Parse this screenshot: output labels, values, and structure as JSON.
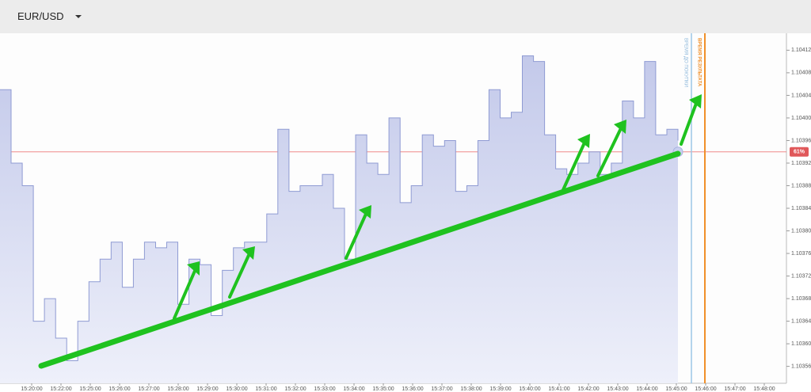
{
  "header": {
    "title": "EUR/USD"
  },
  "chart_data": {
    "type": "line",
    "series": [
      {
        "color": "#8f9bd3",
        "values": [
          1.10405,
          1.10392,
          1.10388,
          1.10364,
          1.10368,
          1.10361,
          1.10357,
          1.10364,
          1.10371,
          1.10375,
          1.10378,
          1.1037,
          1.10375,
          1.10378,
          1.10377,
          1.10378,
          1.10367,
          1.10375,
          1.10374,
          1.10365,
          1.10373,
          1.10377,
          1.10378,
          1.10378,
          1.10383,
          1.10398,
          1.10387,
          1.10388,
          1.10388,
          1.1039,
          1.10384,
          1.10375,
          1.10397,
          1.10392,
          1.1039,
          1.104,
          1.10385,
          1.10388,
          1.10397,
          1.10395,
          1.10396,
          1.10387,
          1.10388,
          1.10396,
          1.10405,
          1.104,
          1.10401,
          1.10411,
          1.1041,
          1.10397,
          1.10391,
          1.1039,
          1.10392,
          1.10394,
          1.1039,
          1.10392,
          1.10403,
          1.104,
          1.1041,
          1.10397,
          1.10398,
          1.10396
        ]
      }
    ],
    "ylim": [
      1.10353,
      1.10415
    ],
    "yticks": [
      {
        "value": 1.10356,
        "label": "1.10356"
      },
      {
        "value": 1.1036,
        "label": "1.10360"
      },
      1.10364,
      1.10368,
      1.10372,
      1.10376,
      {
        "value": 1.1038,
        "label": "1.10380"
      },
      1.10384,
      1.10388,
      1.10392,
      1.10396,
      {
        "value": 1.104,
        "label": "1.10400"
      },
      1.10404,
      1.10408,
      1.10412
    ],
    "xticks": [
      "15:20:00",
      "15:22:00",
      "15:25:00",
      "15:26:00",
      "15:27:00",
      "15:28:00",
      "15:29:00",
      "15:30:00",
      "15:31:00",
      "15:32:00",
      "15:33:00",
      "15:34:00",
      "15:35:00",
      "15:36:00",
      "15:37:00",
      "15:38:00",
      "15:39:00",
      "15:40:00",
      "15:41:00",
      "15:42:00",
      "15:43:00",
      "15:44:00",
      "15:45:00",
      "15:46:00",
      "15:47:00",
      "15:48:00"
    ],
    "current_price": 1.10394,
    "current_label": "61%",
    "buy_time_label": "ВРЕМЯ ДО ПОКУПКИ",
    "result_time_label": "ВРЕМЯ РЕЗУЛЬТАТА"
  }
}
